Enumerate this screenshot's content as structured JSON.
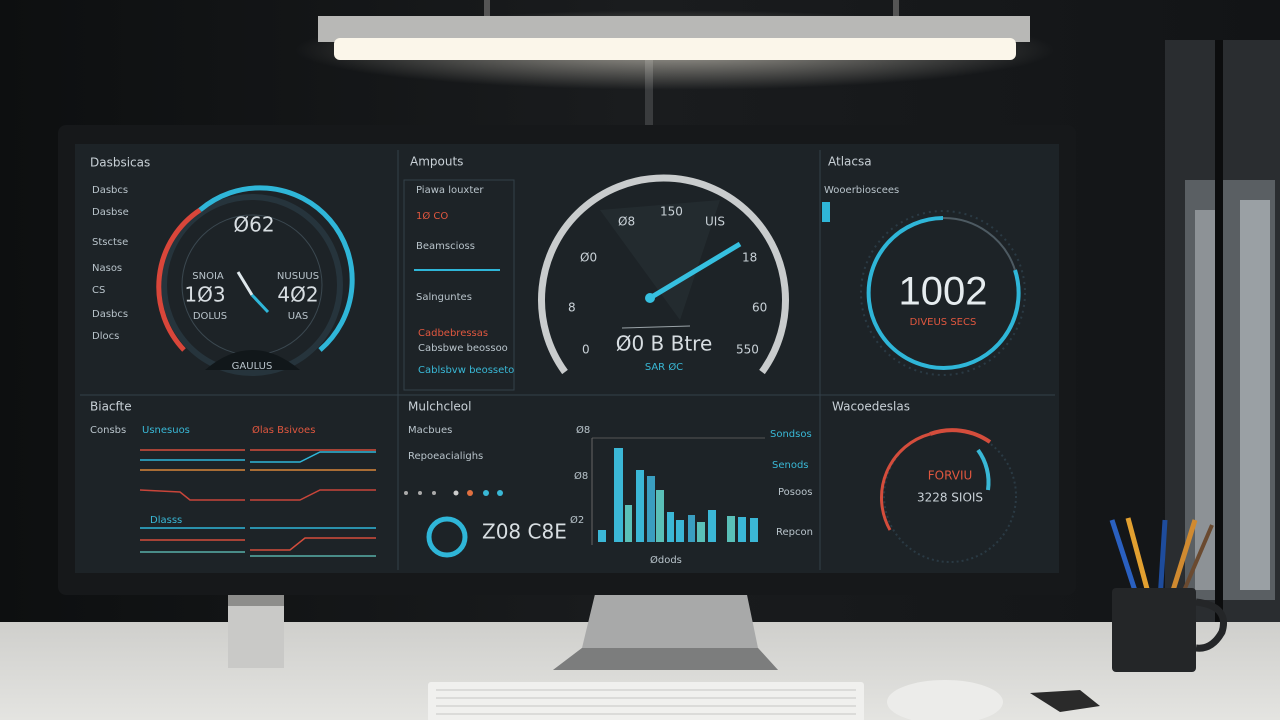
{
  "panels": [
    {
      "title": "Dasbsicas",
      "subtitle": "Dasbcs",
      "items": [
        "Dasbse",
        "Stsctse",
        "Nasos",
        "CS",
        "Dasbcs",
        "Dlocs"
      ],
      "gauge": {
        "top": "Ø62",
        "left_label": "SNOIA",
        "right_label": "NUSUUS",
        "left_value": "1Ø3",
        "right_value": "4Ø2",
        "left_unit": "DOLUS",
        "right_unit": "UAS",
        "bottom": "GAULUS"
      }
    },
    {
      "title": "Ampouts",
      "items": [
        "Piawa louxter",
        "1Ø CO",
        "Beamscioss",
        "Salnguntes",
        "Cadbebressas",
        "Cabsbwe beossoo",
        "Cablsbvw beosseto"
      ]
    },
    {
      "title": "Atlacsa",
      "subtitle": "Wooerbioscees",
      "gauge": {
        "reading": "1002",
        "unit": "DIVEUS SECS"
      }
    },
    {
      "title": "Biacfte",
      "subtitle": "Consbs",
      "legend": [
        "Usnesuos",
        "Ølas Bsivoes",
        "Dlasss"
      ]
    },
    {
      "title": "Mulchcleol",
      "items": [
        "Macbues",
        "Repoeacialighs"
      ],
      "total": "Z08 C8E",
      "axis": [
        "Ø8",
        "Ø8",
        "Ø2",
        "Ødods"
      ],
      "legend": [
        "Sondsos",
        "Senods",
        "Posoos",
        "Repcon"
      ]
    },
    {
      "title": "Wacoedeslas",
      "gauge": {
        "label": "FORVIU",
        "reading": "3228 SIOIS"
      }
    }
  ],
  "center_gauge": {
    "ticks": [
      "Ø8",
      "150",
      "UIS",
      "Ø0",
      "18",
      "8",
      "60",
      "0",
      "550"
    ],
    "reading": "Ø0 B Btre",
    "unit": "SAR ØC"
  }
}
